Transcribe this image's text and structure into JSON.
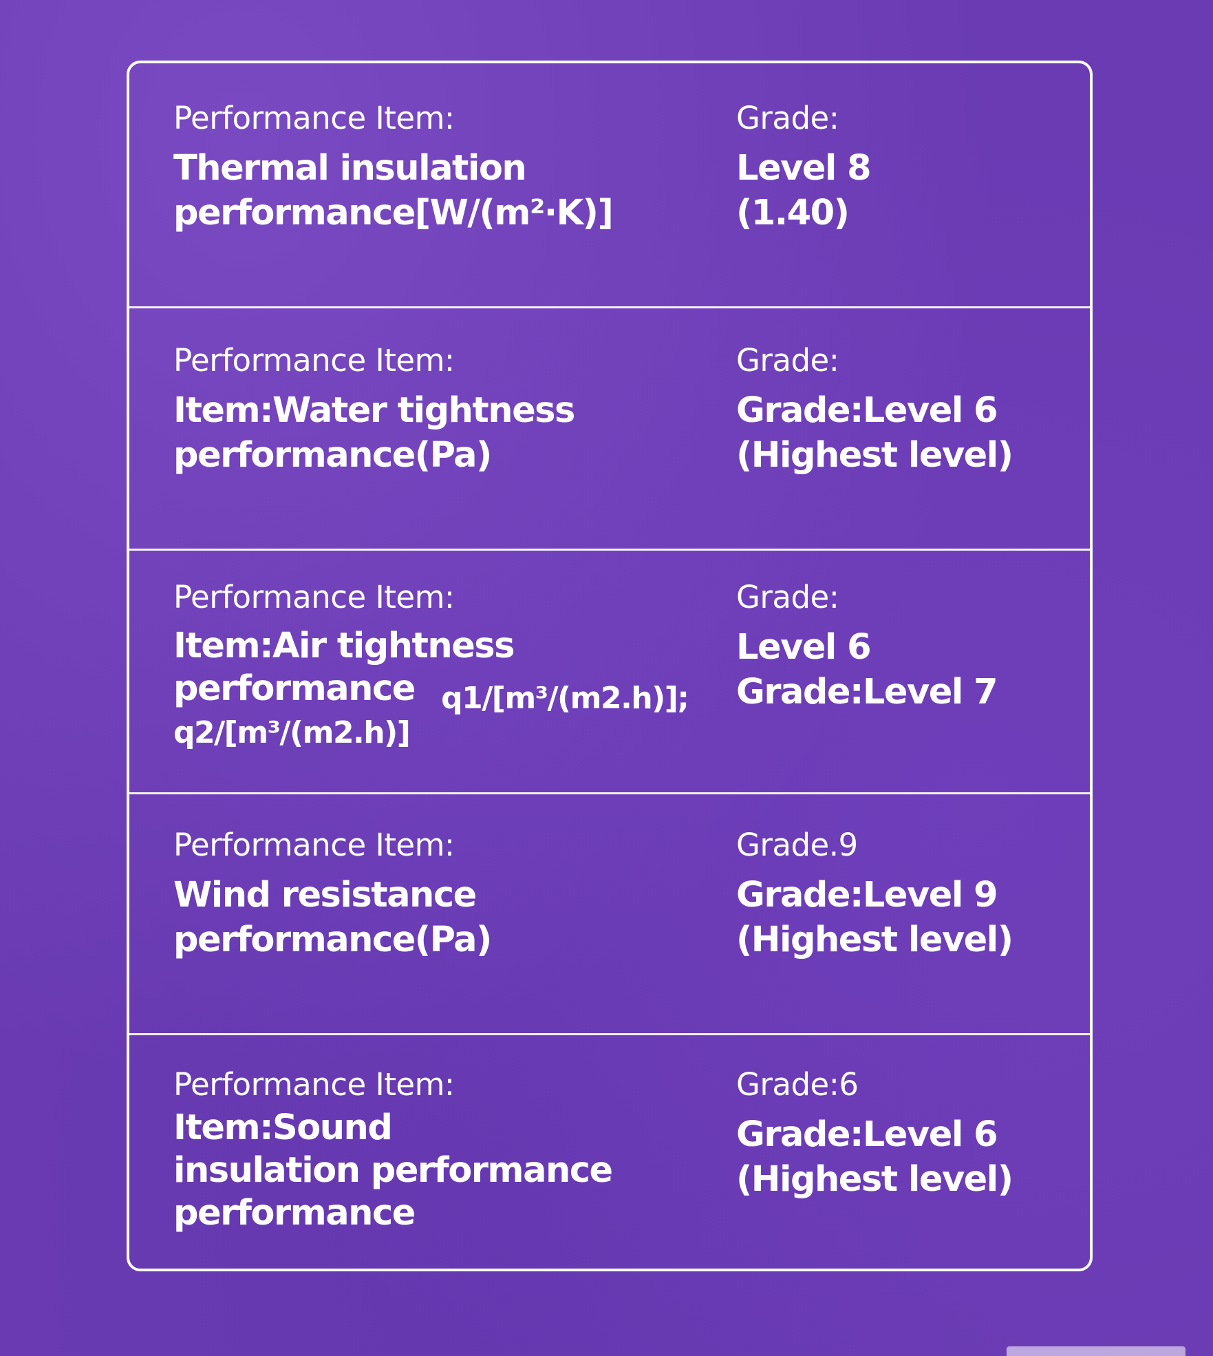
{
  "rows": [
    {
      "item_label": "Performance Item:",
      "item_lines": [
        "Thermal insulation",
        "performance[W/(m²·K)]"
      ],
      "grade_label": "Grade:",
      "grade_lines": [
        "Level 8",
        "(1.40)"
      ]
    },
    {
      "item_label": "Performance Item:",
      "item_lines": [
        "Item:Water tightness",
        "performance(Pa)"
      ],
      "grade_label": "Grade:",
      "grade_lines": [
        "Grade:Level 6",
        "(Highest level)"
      ]
    },
    {
      "item_label": "Performance Item:",
      "item_lines": [
        "Item:Air tightness",
        "performance",
        "q1/[m³/(m2.h)];",
        "q2/[m³/(m2.h)]"
      ],
      "grade_label": "Grade:",
      "grade_lines": [
        "Level 6",
        "Grade:Level 7"
      ]
    },
    {
      "item_label": "Performance Item:",
      "item_lines": [
        "Wind resistance",
        "performance(Pa)"
      ],
      "grade_label": "Grade.9",
      "grade_lines": [
        "Grade:Level 9",
        "(Highest level)"
      ]
    },
    {
      "item_label": "Performance Item:",
      "item_lines": [
        "Item:Sound",
        "insulation performance",
        "performance"
      ],
      "grade_label": "Grade:6",
      "grade_lines": [
        "Grade:Level 6",
        "(Highest level)"
      ]
    }
  ]
}
